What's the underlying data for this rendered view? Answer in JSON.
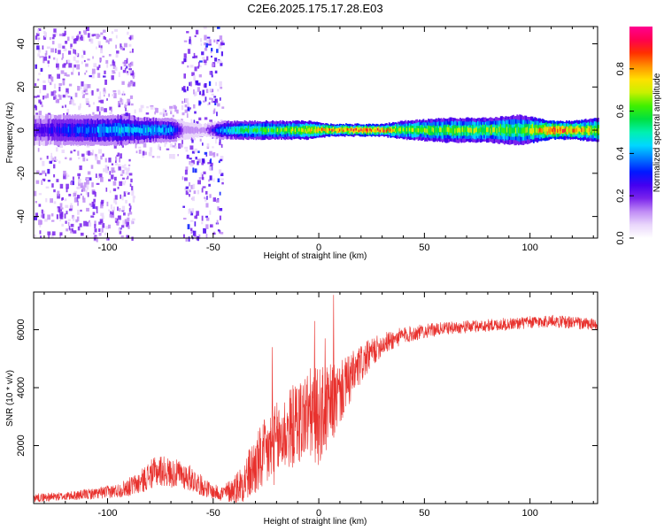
{
  "figure_title": "C2E6.2025.175.17.28.E03",
  "colors": {
    "snr_line": "#e8312d",
    "axes": "#000000",
    "colormap": [
      "#ffffff",
      "#e9d6fb",
      "#c08cf5",
      "#7a24ec",
      "#4400f0",
      "#0018ff",
      "#0078ff",
      "#00d8ff",
      "#00f0b0",
      "#00e040",
      "#40f000",
      "#c8f000",
      "#ffe000",
      "#ff9000",
      "#ff3000",
      "#ff0050",
      "#ff0090"
    ]
  },
  "chart_data": [
    {
      "type": "heatmap",
      "xlabel": "Height of straight line (km)",
      "ylabel": "Frequency (Hz)",
      "xlim": [
        -135,
        132
      ],
      "ylim": [
        -50,
        48
      ],
      "xticks": [
        -100,
        -50,
        0,
        50,
        100
      ],
      "yticks": [
        -40,
        -20,
        0,
        20,
        40
      ],
      "tick_labels_x": [
        "-100",
        "-50",
        "0",
        "50",
        "100"
      ],
      "tick_labels_y": [
        "-40",
        "-20",
        "0",
        "20",
        "40"
      ],
      "colorbar": {
        "label": "Normalized spectral amplitude",
        "range": [
          0,
          1
        ],
        "ticks": [
          0.0,
          0.2,
          0.4,
          0.6,
          0.8
        ],
        "tick_labels": [
          "0.0",
          "0.2",
          "0.4",
          "0.6",
          "0.8"
        ]
      },
      "ridge": {
        "center_hz": 0,
        "profile": [
          {
            "x": -130,
            "amp": 0.25,
            "width_hz": 5
          },
          {
            "x": -110,
            "amp": 0.35,
            "width_hz": 5
          },
          {
            "x": -95,
            "amp": 0.42,
            "width_hz": 5
          },
          {
            "x": -80,
            "amp": 0.42,
            "width_hz": 4
          },
          {
            "x": -70,
            "amp": 0.38,
            "width_hz": 4
          },
          {
            "x": -64,
            "amp": 0.15,
            "width_hz": 3
          },
          {
            "x": -55,
            "amp": 0.1,
            "width_hz": 2
          },
          {
            "x": -46,
            "amp": 0.42,
            "width_hz": 3
          },
          {
            "x": -35,
            "amp": 0.55,
            "width_hz": 3
          },
          {
            "x": -20,
            "amp": 0.6,
            "width_hz": 3
          },
          {
            "x": -5,
            "amp": 0.72,
            "width_hz": 3
          },
          {
            "x": 5,
            "amp": 0.8,
            "width_hz": 2
          },
          {
            "x": 20,
            "amp": 0.85,
            "width_hz": 2
          },
          {
            "x": 30,
            "amp": 0.82,
            "width_hz": 2
          },
          {
            "x": 40,
            "amp": 0.66,
            "width_hz": 3
          },
          {
            "x": 60,
            "amp": 0.62,
            "width_hz": 4
          },
          {
            "x": 80,
            "amp": 0.65,
            "width_hz": 4
          },
          {
            "x": 95,
            "amp": 0.58,
            "width_hz": 5
          },
          {
            "x": 110,
            "amp": 0.88,
            "width_hz": 3
          },
          {
            "x": 120,
            "amp": 0.8,
            "width_hz": 3
          },
          {
            "x": 132,
            "amp": 0.7,
            "width_hz": 4
          }
        ],
        "noise_regions": [
          {
            "x_range": [
              -135,
              -88
            ],
            "freq_range": [
              -50,
              48
            ],
            "amp": 0.15
          },
          {
            "x_range": [
              -65,
              -46
            ],
            "freq_range": [
              -50,
              48
            ],
            "amp": 0.2
          },
          {
            "x_range": [
              -88,
              -65
            ],
            "freq_range": [
              -12,
              12
            ],
            "amp": 0.12
          }
        ]
      }
    },
    {
      "type": "line",
      "xlabel": "Height of straight line (km)",
      "ylabel": "SNR (10 * v/v)",
      "xlim": [
        -135,
        132
      ],
      "ylim": [
        0,
        7300
      ],
      "xticks": [
        -100,
        -50,
        0,
        50,
        100
      ],
      "yticks": [
        2000,
        4000,
        6000
      ],
      "tick_labels_x": [
        "-100",
        "-50",
        "0",
        "50",
        "100"
      ],
      "tick_labels_y": [
        "2000",
        "4000",
        "6000"
      ],
      "series": [
        {
          "x": [
            -135,
            -120,
            -105,
            -95,
            -85,
            -80,
            -75,
            -70,
            -65,
            -60,
            -55,
            -50,
            -45,
            -40,
            -35,
            -30,
            -25,
            -20,
            -15,
            -10,
            -5,
            0,
            5,
            10,
            15,
            20,
            25,
            30,
            40,
            50,
            60,
            70,
            80,
            90,
            100,
            110,
            120,
            132
          ],
          "y": [
            200,
            250,
            350,
            450,
            700,
            1000,
            1150,
            1050,
            1000,
            850,
            600,
            400,
            350,
            500,
            800,
            1300,
            1700,
            2100,
            2500,
            2800,
            3100,
            3000,
            3300,
            3800,
            4300,
            4800,
            5200,
            5500,
            5800,
            5950,
            6050,
            6100,
            6150,
            6200,
            6250,
            6300,
            6250,
            6150
          ],
          "spread": [
            150,
            150,
            200,
            250,
            400,
            500,
            550,
            500,
            500,
            450,
            350,
            250,
            300,
            500,
            800,
            1100,
            1300,
            1400,
            1400,
            1500,
            1600,
            1700,
            1500,
            1100,
            900,
            700,
            500,
            400,
            300,
            250,
            220,
            220,
            220,
            220,
            220,
            220,
            220,
            220
          ]
        }
      ],
      "peaks": [
        {
          "x": -22,
          "y": 5400
        },
        {
          "x": -2,
          "y": 6300
        },
        {
          "x": 7,
          "y": 7200
        },
        {
          "x": 3,
          "y": 5700
        }
      ]
    }
  ]
}
